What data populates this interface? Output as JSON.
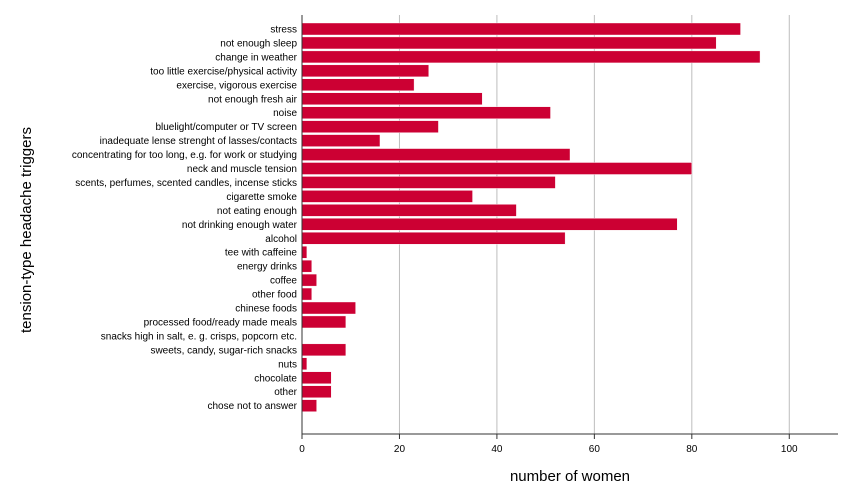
{
  "chart_data": {
    "type": "bar",
    "orientation": "horizontal",
    "xlabel": "number of women",
    "ylabel": "tension-type headache triggers",
    "xlim": [
      0,
      110
    ],
    "xticks": [
      "0",
      "20",
      "40",
      "60",
      "80",
      "100"
    ],
    "grid": "vertical gridlines",
    "legend": "none",
    "bar_color": "#cc0033",
    "categories": [
      "stress",
      "not enough sleep",
      "change in  weather",
      "too little exercise/physical activity",
      "exercise, vigorous exercise",
      "not enough fresh air",
      "noise",
      "bluelight/computer or TV screen",
      "inadequate lense strenght of lasses/contacts",
      "concentrating for too long, e.g. for work or studying",
      "neck and muscle tension",
      "scents, perfumes, scented candles, incense sticks",
      "cigarette smoke",
      "not eating enough",
      "not drinking enough water",
      "alcohol",
      "tee with caffeine",
      "energy drinks",
      "coffee",
      "other food",
      "chinese foods",
      "processed food/ready made meals",
      "snacks high in salt, e. g. crisps, popcorn etc.",
      "sweets, candy, sugar-rich snacks",
      "nuts",
      "chocolate",
      "other",
      "chose not to answer"
    ],
    "values": [
      90,
      85,
      94,
      26,
      23,
      37,
      51,
      28,
      16,
      55,
      80,
      52,
      35,
      44,
      77,
      54,
      1,
      2,
      3,
      2,
      11,
      9,
      0,
      9,
      1,
      6,
      6,
      3
    ]
  }
}
